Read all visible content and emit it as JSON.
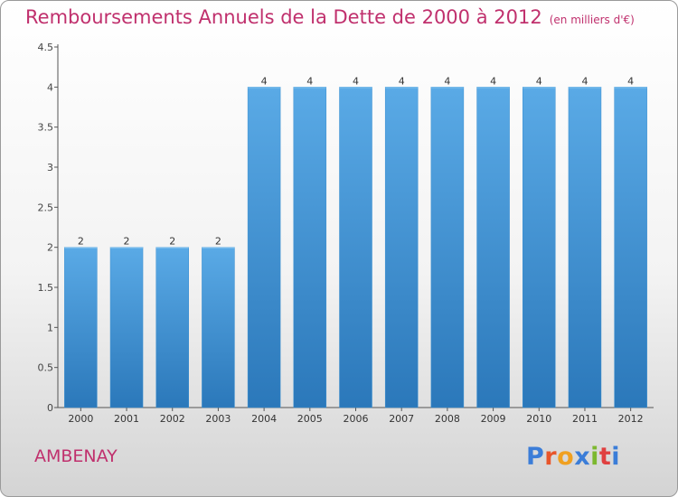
{
  "title": "Remboursements Annuels de la Dette de 2000 à 2012",
  "unit_note": "(en milliers d'€)",
  "place": "AMBENAY",
  "brand": "Proxiti",
  "brand_colors": [
    "#3b7dd8",
    "#e8552a",
    "#f0a020",
    "#3b7dd8",
    "#7cb82f",
    "#e04040",
    "#3b7dd8"
  ],
  "chart_data": {
    "type": "bar",
    "categories": [
      "2000",
      "2001",
      "2002",
      "2003",
      "2004",
      "2005",
      "2006",
      "2007",
      "2008",
      "2009",
      "2010",
      "2011",
      "2012"
    ],
    "values": [
      2,
      2,
      2,
      2,
      4,
      4,
      4,
      4,
      4,
      4,
      4,
      4,
      4
    ],
    "data_labels": [
      "2",
      "2",
      "2",
      "2",
      "4",
      "4",
      "4",
      "4",
      "4",
      "4",
      "4",
      "4",
      "4"
    ],
    "ylim": [
      0,
      4.5
    ],
    "yticks": [
      "0",
      "0.5",
      "1",
      "1.5",
      "2",
      "2.5",
      "3",
      "3.5",
      "4",
      "4.5"
    ],
    "xlabel": "",
    "ylabel": "",
    "grid": false,
    "bar_color": "#4d9fdc"
  }
}
